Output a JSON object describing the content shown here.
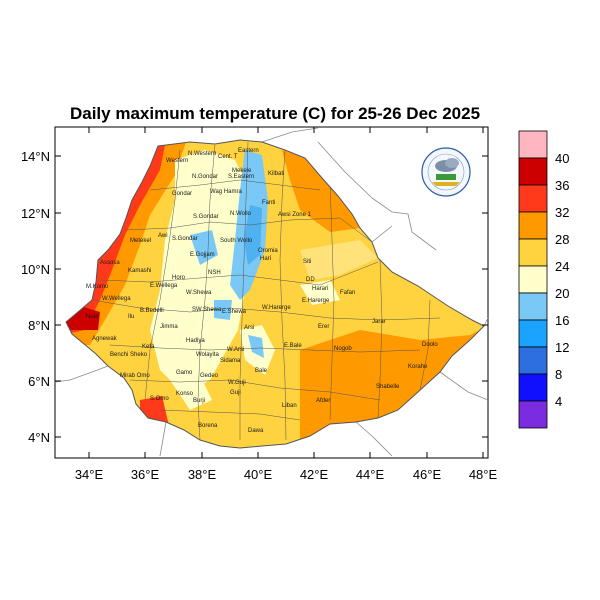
{
  "title": "Daily maximum temperature (C) for 25-26 Dec 2025",
  "map": {
    "lon_range": [
      33,
      48
    ],
    "lat_range": [
      3.2,
      15
    ],
    "x_ticks": [
      "34°E",
      "36°E",
      "38°E",
      "40°E",
      "42°E",
      "44°E",
      "46°E",
      "48°E"
    ],
    "y_ticks": [
      "4°N",
      "6°N",
      "8°N",
      "10°N",
      "12°N",
      "14°N"
    ],
    "regions": [
      "Western",
      "N.Western",
      "Cent. T",
      "Eastern",
      "Mekele",
      "S.Eastern",
      "Kilbati",
      "Gondar",
      "N.Gondar",
      "S.Gondar",
      "Wag Hamra",
      "N.Wollo",
      "Fanti",
      "Awsi Zone 1",
      "Metekel",
      "Awi",
      "S.Gondar",
      "South Wollo",
      "Oromia",
      "Hari",
      "Siti",
      "Assosa",
      "Kamashi",
      "Horo",
      "E.Gojjam",
      "NSH",
      "DD",
      "Harari",
      "Fafan",
      "M.Komo",
      "W.Wellega",
      "E.Wellega",
      "W.Shewa",
      "E.Harerge",
      "W.Harerge",
      "B.Bedelli",
      "Ilu",
      "Jimma",
      "SW.Shewa",
      "E.Shewa",
      "Arsi",
      "Erer",
      "Jarar",
      "Nuer",
      "Agnewak",
      "Benchi Sheko",
      "Kefa",
      "Hadiya",
      "Wolayita",
      "Sidama",
      "W.Arsi",
      "E.Bale",
      "Nogob",
      "Doolo",
      "Mirab Omo",
      "Gamo",
      "Gedeo",
      "W.Guji",
      "Guji",
      "Bale",
      "Korahe",
      "Shabelle",
      "S.Omo",
      "Konso",
      "Burji",
      "Afder",
      "Liban",
      "Borena",
      "Dawa"
    ]
  },
  "colorbar": {
    "labels": [
      "40",
      "36",
      "32",
      "28",
      "24",
      "20",
      "16",
      "12",
      "8",
      "4"
    ],
    "colors": [
      "#ffb6c1",
      "#cc0000",
      "#ff3a1a",
      "#ff9900",
      "#ffd23f",
      "#ffffcc",
      "#7ac8f5",
      "#1aa3ff",
      "#2e6fe0",
      "#1010ff",
      "#7b2be0"
    ]
  },
  "logo": {
    "name": "ethiopian-meteorology-institute-logo"
  }
}
